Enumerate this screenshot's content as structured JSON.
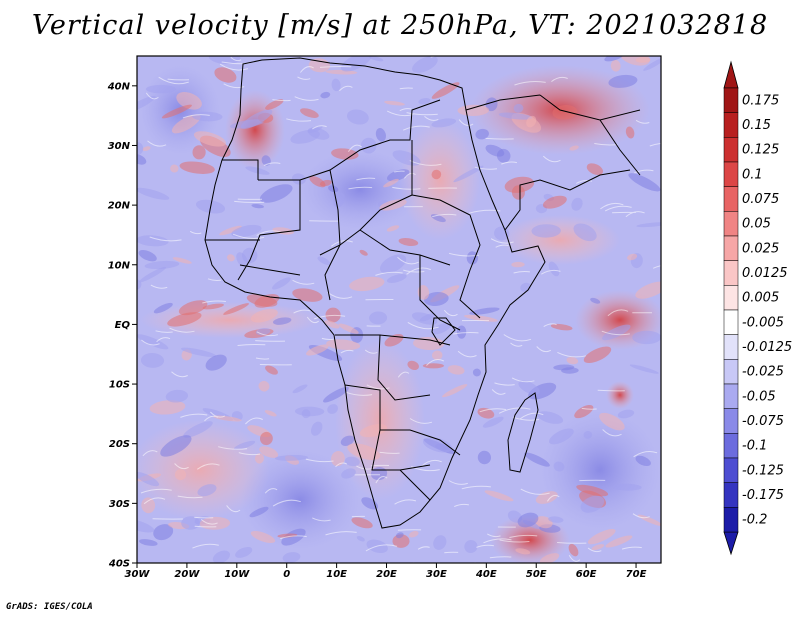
{
  "title": "Vertical velocity [m/s] at 250hPa, VT: 2021032818",
  "credit": "GrADS: IGES/COLA",
  "map": {
    "region": "Africa and surrounding oceans",
    "lon_range": [
      -30,
      75
    ],
    "lat_range": [
      -40,
      45
    ],
    "lat_ticks": [
      {
        "value": 40,
        "label": "40N"
      },
      {
        "value": 30,
        "label": "30N"
      },
      {
        "value": 20,
        "label": "20N"
      },
      {
        "value": 10,
        "label": "10N"
      },
      {
        "value": 0,
        "label": "EQ"
      },
      {
        "value": -10,
        "label": "10S"
      },
      {
        "value": -20,
        "label": "20S"
      },
      {
        "value": -30,
        "label": "30S"
      },
      {
        "value": -40,
        "label": "40S"
      }
    ],
    "lon_ticks": [
      {
        "value": -30,
        "label": "30W"
      },
      {
        "value": -20,
        "label": "20W"
      },
      {
        "value": -10,
        "label": "10W"
      },
      {
        "value": 0,
        "label": "0"
      },
      {
        "value": 10,
        "label": "10E"
      },
      {
        "value": 20,
        "label": "20E"
      },
      {
        "value": 30,
        "label": "30E"
      },
      {
        "value": 40,
        "label": "40E"
      },
      {
        "value": 50,
        "label": "50E"
      },
      {
        "value": 60,
        "label": "60E"
      },
      {
        "value": 70,
        "label": "70E"
      }
    ]
  },
  "colorbar": {
    "levels": [
      {
        "label": "0.175",
        "color": "#a01616"
      },
      {
        "label": "0.15",
        "color": "#b82020"
      },
      {
        "label": "0.125",
        "color": "#cc3030"
      },
      {
        "label": "0.1",
        "color": "#dc4646"
      },
      {
        "label": "0.075",
        "color": "#e86464"
      },
      {
        "label": "0.05",
        "color": "#f08484"
      },
      {
        "label": "0.025",
        "color": "#f6a6a6"
      },
      {
        "label": "0.0125",
        "color": "#fac6c6"
      },
      {
        "label": "0.005",
        "color": "#fde4e4"
      },
      {
        "label": "-0.005",
        "color": "#ffffff"
      },
      {
        "label": "-0.0125",
        "color": "#e2e2fa"
      },
      {
        "label": "-0.025",
        "color": "#c8c8f6"
      },
      {
        "label": "-0.05",
        "color": "#aaaaf0"
      },
      {
        "label": "-0.075",
        "color": "#8a8ae8"
      },
      {
        "label": "-0.1",
        "color": "#6c6cde"
      },
      {
        "label": "-0.125",
        "color": "#4e4ed2"
      },
      {
        "label": "-0.175",
        "color": "#3434c0"
      },
      {
        "label": "-0.2",
        "color": "#1c1ca8"
      }
    ],
    "top_color": "#a01616",
    "bottom_color": "#1c1ca8"
  }
}
